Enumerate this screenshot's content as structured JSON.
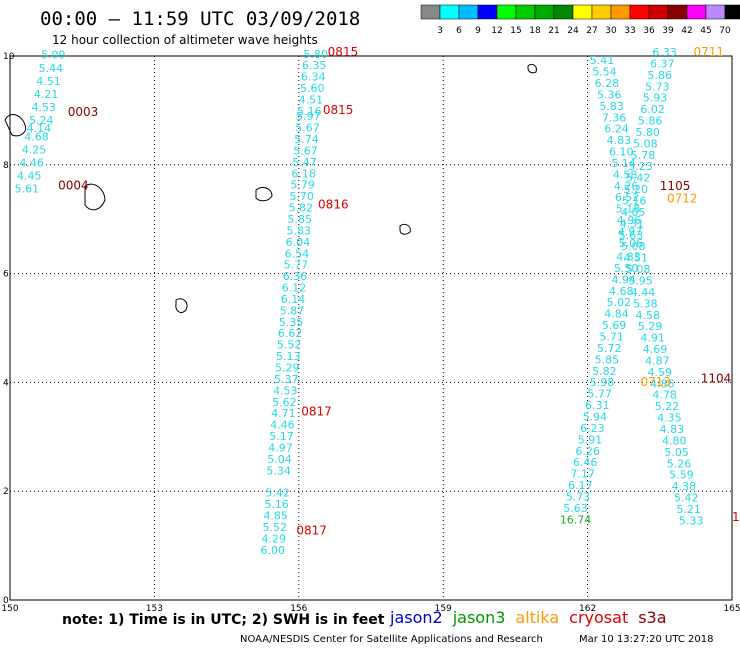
{
  "title": "00:00 — 11:59 UTC 03/09/2018",
  "subtitle": "12 hour collection of altimeter wave heights",
  "legend": {
    "unit_label": "(ft)",
    "bins": [
      {
        "label": "3",
        "color": "#00ffff"
      },
      {
        "label": "6",
        "color": "#00bbff"
      },
      {
        "label": "9",
        "color": "#0000ff"
      },
      {
        "label": "12",
        "color": "#00ff00"
      },
      {
        "label": "15",
        "color": "#00cc00"
      },
      {
        "label": "18",
        "color": "#00aa00"
      },
      {
        "label": "21",
        "color": "#008800"
      },
      {
        "label": "24",
        "color": "#ffff00"
      },
      {
        "label": "27",
        "color": "#ffcc00"
      },
      {
        "label": "30",
        "color": "#ff9900"
      },
      {
        "label": "33",
        "color": "#ff0000"
      },
      {
        "label": "36",
        "color": "#cc0000"
      },
      {
        "label": "39",
        "color": "#880000"
      },
      {
        "label": "42",
        "color": "#ff00ff"
      },
      {
        "label": "45",
        "color": "#bb88ff"
      },
      {
        "label": "70",
        "color": "#000000"
      }
    ],
    "swatch_gray": "#888888"
  },
  "footer": {
    "note": "note: 1) Time is in UTC; 2) SWH is in feet",
    "credit": "NOAA/NESDIS Center for Satellite Applications and Research",
    "timestamp": "Mar 10 13:27:20 UTC 2018"
  },
  "satellites": [
    {
      "name": "jason2",
      "color": "#0000cc"
    },
    {
      "name": "jason3",
      "color": "#009900"
    },
    {
      "name": "altika",
      "color": "#ff9900"
    },
    {
      "name": "cryosat",
      "color": "#dd0000"
    },
    {
      "name": "s3a",
      "color": "#880000"
    }
  ],
  "chart_data": {
    "type": "scatter",
    "title": "00:00 — 11:59 UTC 03/09/2018",
    "subtitle": "12 hour collection of altimeter wave heights",
    "x_ticks": [
      "150",
      "153",
      "156",
      "159",
      "162",
      "165"
    ],
    "y_ticks": [
      "0",
      "2",
      "4",
      "6",
      "8",
      "10"
    ],
    "xlim": [
      150,
      165
    ],
    "ylim": [
      0,
      10
    ],
    "grid": true,
    "units": "feet",
    "tracks": [
      {
        "name": "track-west-a",
        "points": [
          {
            "x": 150.9,
            "y": 9.95,
            "v": "5.09"
          },
          {
            "x": 150.85,
            "y": 9.71,
            "v": "5.44"
          },
          {
            "x": 150.8,
            "y": 9.47,
            "v": "4.51"
          },
          {
            "x": 150.75,
            "y": 9.23,
            "v": "4.21"
          },
          {
            "x": 150.7,
            "y": 8.99,
            "v": "4.53"
          },
          {
            "x": 150.65,
            "y": 8.75,
            "v": "5.24"
          },
          {
            "x": 150.6,
            "y": 8.6,
            "v": "4.14"
          },
          {
            "x": 150.55,
            "y": 8.45,
            "v": "4.68"
          },
          {
            "x": 150.5,
            "y": 8.21,
            "v": "4.25"
          },
          {
            "x": 150.45,
            "y": 7.97,
            "v": "4.46"
          },
          {
            "x": 150.4,
            "y": 7.73,
            "v": "4.45"
          },
          {
            "x": 150.35,
            "y": 7.49,
            "v": "5.61"
          }
        ]
      },
      {
        "name": "track-west-b",
        "points": [
          {
            "x": 156.35,
            "y": 9.96,
            "v": "5.80"
          },
          {
            "x": 156.32,
            "y": 9.76,
            "v": "6.35"
          },
          {
            "x": 156.3,
            "y": 9.55,
            "v": "6.34"
          },
          {
            "x": 156.28,
            "y": 9.34,
            "v": "5.60"
          },
          {
            "x": 156.25,
            "y": 9.13,
            "v": "4.51"
          },
          {
            "x": 156.22,
            "y": 8.92,
            "v": "5.16"
          },
          {
            "x": 156.2,
            "y": 8.82,
            "v": "5.97"
          },
          {
            "x": 156.18,
            "y": 8.61,
            "v": "5.67"
          },
          {
            "x": 156.16,
            "y": 8.4,
            "v": "5.74"
          },
          {
            "x": 156.14,
            "y": 8.19,
            "v": "5.67"
          },
          {
            "x": 156.12,
            "y": 7.98,
            "v": "5.47"
          },
          {
            "x": 156.1,
            "y": 7.77,
            "v": "6.18"
          },
          {
            "x": 156.08,
            "y": 7.56,
            "v": "5.79"
          },
          {
            "x": 156.06,
            "y": 7.35,
            "v": "5.70"
          },
          {
            "x": 156.04,
            "y": 7.14,
            "v": "5.82"
          },
          {
            "x": 156.02,
            "y": 6.93,
            "v": "5.85"
          },
          {
            "x": 156.0,
            "y": 6.72,
            "v": "5.83"
          },
          {
            "x": 155.98,
            "y": 6.51,
            "v": "6.04"
          },
          {
            "x": 155.96,
            "y": 6.3,
            "v": "6.54"
          },
          {
            "x": 155.94,
            "y": 6.09,
            "v": "5.77"
          },
          {
            "x": 155.92,
            "y": 5.88,
            "v": "6.36"
          },
          {
            "x": 155.9,
            "y": 5.67,
            "v": "6.12"
          },
          {
            "x": 155.88,
            "y": 5.46,
            "v": "6.14"
          },
          {
            "x": 155.86,
            "y": 5.25,
            "v": "5.87"
          },
          {
            "x": 155.84,
            "y": 5.04,
            "v": "5.35"
          },
          {
            "x": 155.82,
            "y": 4.83,
            "v": "6.62"
          },
          {
            "x": 155.8,
            "y": 4.62,
            "v": "5.52"
          },
          {
            "x": 155.78,
            "y": 4.41,
            "v": "5.13"
          },
          {
            "x": 155.76,
            "y": 4.2,
            "v": "5.29"
          },
          {
            "x": 155.74,
            "y": 3.99,
            "v": "5.37"
          },
          {
            "x": 155.72,
            "y": 3.78,
            "v": "4.53"
          },
          {
            "x": 155.7,
            "y": 3.57,
            "v": "5.62"
          },
          {
            "x": 155.68,
            "y": 3.36,
            "v": "4.71"
          },
          {
            "x": 155.66,
            "y": 3.15,
            "v": "4.46"
          },
          {
            "x": 155.64,
            "y": 2.94,
            "v": "5.17"
          },
          {
            "x": 155.62,
            "y": 2.73,
            "v": "4.97"
          },
          {
            "x": 155.6,
            "y": 2.52,
            "v": "5.04"
          },
          {
            "x": 155.58,
            "y": 2.31,
            "v": "5.34"
          },
          {
            "x": 155.56,
            "y": 1.9,
            "v": "5.42"
          },
          {
            "x": 155.54,
            "y": 1.69,
            "v": "5.16"
          },
          {
            "x": 155.52,
            "y": 1.48,
            "v": "4.85"
          },
          {
            "x": 155.5,
            "y": 1.27,
            "v": "5.52"
          },
          {
            "x": 155.48,
            "y": 1.06,
            "v": "4.29"
          },
          {
            "x": 155.46,
            "y": 0.85,
            "v": "6.00"
          }
        ]
      },
      {
        "name": "track-east-a",
        "points": [
          {
            "x": 162.3,
            "y": 9.85,
            "v": "5.41"
          },
          {
            "x": 162.35,
            "y": 9.64,
            "v": "5.54"
          },
          {
            "x": 162.4,
            "y": 9.43,
            "v": "6.28"
          },
          {
            "x": 162.45,
            "y": 9.22,
            "v": "5.36"
          },
          {
            "x": 162.5,
            "y": 9.01,
            "v": "5.83"
          },
          {
            "x": 162.55,
            "y": 8.8,
            "v": "7.36"
          },
          {
            "x": 162.6,
            "y": 8.59,
            "v": "6.24"
          },
          {
            "x": 162.65,
            "y": 8.38,
            "v": "4.83"
          },
          {
            "x": 162.7,
            "y": 8.17,
            "v": "6.10"
          },
          {
            "x": 162.75,
            "y": 7.96,
            "v": "5.14"
          },
          {
            "x": 162.78,
            "y": 7.75,
            "v": "4.58"
          },
          {
            "x": 162.8,
            "y": 7.54,
            "v": "4.26"
          },
          {
            "x": 162.82,
            "y": 7.33,
            "v": "6.52"
          },
          {
            "x": 162.84,
            "y": 7.12,
            "v": "5.18"
          },
          {
            "x": 162.86,
            "y": 6.91,
            "v": "4.96"
          },
          {
            "x": 162.88,
            "y": 6.7,
            "v": "4.97"
          },
          {
            "x": 162.9,
            "y": 6.49,
            "v": "5.06"
          },
          {
            "x": 162.85,
            "y": 6.24,
            "v": "4.83"
          },
          {
            "x": 162.8,
            "y": 6.03,
            "v": "5.50"
          },
          {
            "x": 162.75,
            "y": 5.82,
            "v": "4.94"
          },
          {
            "x": 162.7,
            "y": 5.61,
            "v": "4.68"
          },
          {
            "x": 162.65,
            "y": 5.4,
            "v": "5.02"
          },
          {
            "x": 162.6,
            "y": 5.19,
            "v": "4.84"
          },
          {
            "x": 162.55,
            "y": 4.98,
            "v": "5.69"
          },
          {
            "x": 162.5,
            "y": 4.77,
            "v": "5.71"
          },
          {
            "x": 162.45,
            "y": 4.56,
            "v": "5.72"
          },
          {
            "x": 162.4,
            "y": 4.35,
            "v": "5.85"
          },
          {
            "x": 162.35,
            "y": 4.14,
            "v": "5.82"
          },
          {
            "x": 162.3,
            "y": 3.93,
            "v": "5.98"
          },
          {
            "x": 162.25,
            "y": 3.72,
            "v": "5.77"
          },
          {
            "x": 162.2,
            "y": 3.51,
            "v": "6.31"
          },
          {
            "x": 162.15,
            "y": 3.3,
            "v": "5.94"
          },
          {
            "x": 162.1,
            "y": 3.09,
            "v": "6.23"
          },
          {
            "x": 162.05,
            "y": 2.88,
            "v": "5.91"
          },
          {
            "x": 162.0,
            "y": 2.67,
            "v": "6.26"
          },
          {
            "x": 161.95,
            "y": 2.46,
            "v": "6.46"
          },
          {
            "x": 161.9,
            "y": 2.25,
            "v": "7.17"
          },
          {
            "x": 161.85,
            "y": 2.04,
            "v": "6.17"
          },
          {
            "x": 161.8,
            "y": 1.83,
            "v": "5.73"
          },
          {
            "x": 161.75,
            "y": 1.62,
            "v": "5.63"
          }
        ]
      },
      {
        "name": "track-east-b",
        "points": [
          {
            "x": 163.6,
            "y": 10.0,
            "v": "6.33"
          },
          {
            "x": 163.55,
            "y": 9.79,
            "v": "6.37"
          },
          {
            "x": 163.5,
            "y": 9.58,
            "v": "5.86"
          },
          {
            "x": 163.45,
            "y": 9.37,
            "v": "5.73"
          },
          {
            "x": 163.4,
            "y": 9.16,
            "v": "5.93"
          },
          {
            "x": 163.35,
            "y": 8.95,
            "v": "6.02"
          },
          {
            "x": 163.3,
            "y": 8.74,
            "v": "5.86"
          },
          {
            "x": 163.25,
            "y": 8.53,
            "v": "5.80"
          },
          {
            "x": 163.2,
            "y": 8.32,
            "v": "5.08"
          },
          {
            "x": 163.15,
            "y": 8.11,
            "v": "5.78"
          },
          {
            "x": 163.1,
            "y": 7.9,
            "v": "5.23"
          },
          {
            "x": 163.05,
            "y": 7.69,
            "v": "5.42"
          },
          {
            "x": 163.0,
            "y": 7.48,
            "v": "5.20"
          },
          {
            "x": 162.97,
            "y": 7.27,
            "v": "5.16"
          },
          {
            "x": 162.95,
            "y": 7.06,
            "v": "4.05"
          },
          {
            "x": 162.92,
            "y": 6.85,
            "v": "4.31"
          },
          {
            "x": 162.9,
            "y": 6.64,
            "v": "5.63"
          },
          {
            "x": 162.95,
            "y": 6.43,
            "v": "5.08"
          },
          {
            "x": 163.0,
            "y": 6.22,
            "v": "4.51"
          },
          {
            "x": 163.05,
            "y": 6.01,
            "v": "5.08"
          },
          {
            "x": 163.1,
            "y": 5.8,
            "v": "5.95"
          },
          {
            "x": 163.15,
            "y": 5.59,
            "v": "4.44"
          },
          {
            "x": 163.2,
            "y": 5.38,
            "v": "5.38"
          },
          {
            "x": 163.25,
            "y": 5.17,
            "v": "4.58"
          },
          {
            "x": 163.3,
            "y": 4.96,
            "v": "5.29"
          },
          {
            "x": 163.35,
            "y": 4.75,
            "v": "4.91"
          },
          {
            "x": 163.4,
            "y": 4.54,
            "v": "4.69"
          },
          {
            "x": 163.45,
            "y": 4.33,
            "v": "4.87"
          },
          {
            "x": 163.5,
            "y": 4.12,
            "v": "4.59"
          },
          {
            "x": 163.55,
            "y": 3.91,
            "v": "4.86"
          },
          {
            "x": 163.6,
            "y": 3.7,
            "v": "4.78"
          },
          {
            "x": 163.65,
            "y": 3.49,
            "v": "5.22"
          },
          {
            "x": 163.7,
            "y": 3.28,
            "v": "4.35"
          },
          {
            "x": 163.75,
            "y": 3.07,
            "v": "4.83"
          },
          {
            "x": 163.8,
            "y": 2.86,
            "v": "4.80"
          },
          {
            "x": 163.85,
            "y": 2.65,
            "v": "5.05"
          },
          {
            "x": 163.9,
            "y": 2.44,
            "v": "5.26"
          },
          {
            "x": 163.95,
            "y": 2.23,
            "v": "5.59"
          },
          {
            "x": 164.0,
            "y": 2.02,
            "v": "4.38"
          },
          {
            "x": 164.05,
            "y": 1.81,
            "v": "5.42"
          },
          {
            "x": 164.1,
            "y": 1.6,
            "v": "5.21"
          },
          {
            "x": 164.15,
            "y": 1.39,
            "v": "5.33"
          }
        ]
      }
    ],
    "green_points": [
      {
        "x": 161.75,
        "y": 1.41,
        "v": "16.74"
      }
    ],
    "time_labels": [
      {
        "text": "0815",
        "x": 156.6,
        "y": 10.0,
        "color": "#dd0000"
      },
      {
        "text": "0815",
        "x": 156.5,
        "y": 8.93,
        "color": "#dd0000"
      },
      {
        "text": "0816",
        "x": 156.4,
        "y": 7.2,
        "color": "#dd0000"
      },
      {
        "text": "0817",
        "x": 156.05,
        "y": 3.39,
        "color": "#dd0000"
      },
      {
        "text": "0817",
        "x": 155.95,
        "y": 1.2,
        "color": "#dd0000"
      },
      {
        "text": "0003",
        "x": 151.2,
        "y": 8.9,
        "color": "#880000"
      },
      {
        "text": "0004",
        "x": 151.0,
        "y": 7.55,
        "color": "#880000"
      },
      {
        "text": "0711",
        "x": 164.2,
        "y": 10.0,
        "color": "#ff9900"
      },
      {
        "text": "1105",
        "x": 163.5,
        "y": 7.54,
        "color": "#880000"
      },
      {
        "text": "0712",
        "x": 163.65,
        "y": 7.31,
        "color": "#ff9900"
      },
      {
        "text": "0713",
        "x": 163.1,
        "y": 3.93,
        "color": "#ff9900"
      },
      {
        "text": "1104",
        "x": 164.35,
        "y": 4.0,
        "color": "#880000"
      },
      {
        "text": "1",
        "x": 165.0,
        "y": 1.45,
        "color": "#dd0000"
      }
    ]
  }
}
